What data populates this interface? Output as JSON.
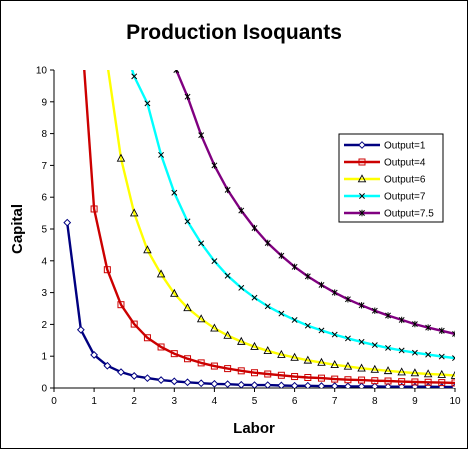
{
  "chart_data": {
    "type": "line",
    "title": "Production Isoquants",
    "xlabel": "Labor",
    "ylabel": "Capital",
    "xlim": [
      0,
      10
    ],
    "ylim": [
      0,
      10
    ],
    "xticks": [
      "0",
      "1",
      "2",
      "3",
      "4",
      "5",
      "6",
      "7",
      "8",
      "9",
      "10"
    ],
    "yticks": [
      "0",
      "1",
      "2",
      "3",
      "4",
      "5",
      "6",
      "7",
      "8",
      "9",
      "10"
    ],
    "grid": false,
    "legend_position": "right",
    "series": [
      {
        "name": "Output=1",
        "color": "#000080",
        "marker": "diamond",
        "x": [
          0.33,
          0.67,
          1.0,
          1.33,
          1.67,
          2.0,
          2.33,
          2.67,
          3.0,
          3.33,
          3.67,
          4.0,
          4.33,
          4.67,
          5.0,
          5.33,
          5.67,
          6.0,
          6.33,
          6.67,
          7.0,
          7.33,
          7.67,
          8.0,
          8.33,
          8.67,
          9.0,
          9.33,
          9.67,
          10.0
        ],
        "y": [
          5.2,
          1.83,
          1.04,
          0.7,
          0.5,
          0.38,
          0.31,
          0.25,
          0.21,
          0.18,
          0.15,
          0.13,
          0.12,
          0.1,
          0.09,
          0.09,
          0.08,
          0.07,
          0.07,
          0.06,
          0.06,
          0.05,
          0.05,
          0.05,
          0.04,
          0.04,
          0.04,
          0.04,
          0.03,
          0.03
        ]
      },
      {
        "name": "Output=4",
        "color": "#cc0000",
        "marker": "square",
        "x": [
          0.67,
          1.0,
          1.33,
          1.67,
          2.0,
          2.33,
          2.67,
          3.0,
          3.33,
          3.67,
          4.0,
          4.33,
          4.67,
          5.0,
          5.33,
          5.67,
          6.0,
          6.33,
          6.67,
          7.0,
          7.33,
          7.67,
          8.0,
          8.33,
          8.67,
          9.0,
          9.33,
          9.67,
          10.0
        ],
        "y": [
          11.5,
          5.63,
          3.72,
          2.62,
          2.01,
          1.58,
          1.29,
          1.08,
          0.92,
          0.79,
          0.69,
          0.61,
          0.54,
          0.48,
          0.44,
          0.4,
          0.36,
          0.33,
          0.31,
          0.28,
          0.26,
          0.25,
          0.23,
          0.22,
          0.2,
          0.19,
          0.18,
          0.17,
          0.16
        ]
      },
      {
        "name": "Output=6",
        "color": "#ffff00",
        "marker": "triangle",
        "x": [
          1.33,
          1.67,
          2.0,
          2.33,
          2.67,
          3.0,
          3.33,
          3.67,
          4.0,
          4.33,
          4.67,
          5.0,
          5.33,
          5.67,
          6.0,
          6.33,
          6.67,
          7.0,
          7.33,
          7.67,
          8.0,
          8.33,
          8.67,
          9.0,
          9.33,
          9.67,
          10.0
        ],
        "y": [
          10.2,
          7.22,
          5.5,
          4.34,
          3.58,
          2.97,
          2.52,
          2.17,
          1.88,
          1.65,
          1.46,
          1.3,
          1.17,
          1.05,
          0.96,
          0.87,
          0.8,
          0.73,
          0.68,
          0.62,
          0.58,
          0.54,
          0.5,
          0.47,
          0.44,
          0.42,
          0.39
        ]
      },
      {
        "name": "Output=7",
        "color": "#00ffff",
        "marker": "x",
        "x": [
          1.9,
          2.0,
          2.33,
          2.67,
          3.0,
          3.33,
          3.67,
          4.0,
          4.33,
          4.67,
          5.0,
          5.33,
          5.67,
          6.0,
          6.33,
          6.67,
          7.0,
          7.33,
          7.67,
          8.0,
          8.33,
          8.67,
          9.0,
          9.33,
          9.67,
          10.0
        ],
        "y": [
          10.2,
          9.8,
          8.95,
          7.33,
          6.14,
          5.24,
          4.55,
          3.99,
          3.53,
          3.15,
          2.84,
          2.57,
          2.34,
          2.14,
          1.96,
          1.81,
          1.68,
          1.56,
          1.45,
          1.35,
          1.26,
          1.18,
          1.11,
          1.05,
          0.99,
          0.94
        ]
      },
      {
        "name": "Output=7.5",
        "color": "#800080",
        "marker": "star",
        "x": [
          3.05,
          3.33,
          3.67,
          4.0,
          4.33,
          4.67,
          5.0,
          5.33,
          5.67,
          6.0,
          6.33,
          6.67,
          7.0,
          7.33,
          7.67,
          8.0,
          8.33,
          8.67,
          9.0,
          9.33,
          9.67,
          10.0
        ],
        "y": [
          10.0,
          9.16,
          7.95,
          7.0,
          6.23,
          5.58,
          5.03,
          4.56,
          4.16,
          3.81,
          3.51,
          3.24,
          3.0,
          2.79,
          2.6,
          2.43,
          2.28,
          2.14,
          2.01,
          1.9,
          1.8,
          1.7
        ]
      }
    ]
  }
}
